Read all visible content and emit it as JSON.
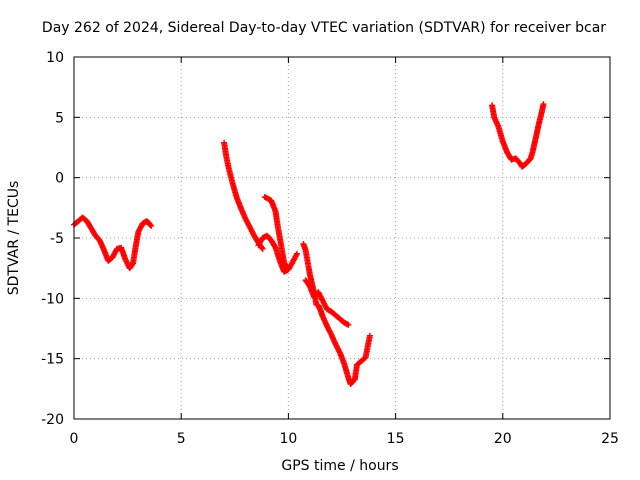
{
  "chart_data": {
    "type": "scatter",
    "title": "Day 262 of 2024, Sidereal Day-to-day VTEC variation (SDTVAR) for receiver bcar",
    "xlabel": "GPS time / hours",
    "ylabel": "SDTVAR / TECUs",
    "xlim": [
      0,
      25
    ],
    "ylim": [
      -20,
      10
    ],
    "x_ticks": [
      0,
      5,
      10,
      15,
      20,
      25
    ],
    "y_ticks": [
      -20,
      -15,
      -10,
      -5,
      0,
      5,
      10
    ],
    "grid": true,
    "marker": "plus",
    "series": [
      {
        "name": "SDTVAR",
        "color": "#ff0000",
        "segments": [
          [
            [
              0.0,
              -3.9
            ],
            [
              0.2,
              -3.6
            ],
            [
              0.4,
              -3.3
            ],
            [
              0.6,
              -3.6
            ],
            [
              0.8,
              -4.2
            ],
            [
              1.0,
              -4.8
            ],
            [
              1.2,
              -5.2
            ],
            [
              1.4,
              -6.0
            ],
            [
              1.6,
              -6.9
            ],
            [
              1.8,
              -6.6
            ],
            [
              2.0,
              -5.9
            ],
            [
              2.2,
              -5.8
            ],
            [
              2.4,
              -6.8
            ],
            [
              2.6,
              -7.5
            ],
            [
              2.75,
              -7.1
            ],
            [
              2.9,
              -5.5
            ],
            [
              3.0,
              -4.5
            ],
            [
              3.2,
              -3.8
            ],
            [
              3.4,
              -3.6
            ],
            [
              3.6,
              -4.0
            ]
          ],
          [
            [
              7.0,
              2.9
            ],
            [
              7.1,
              1.8
            ],
            [
              7.2,
              0.9
            ],
            [
              7.4,
              -0.5
            ],
            [
              7.6,
              -1.7
            ],
            [
              7.8,
              -2.6
            ],
            [
              8.0,
              -3.4
            ],
            [
              8.2,
              -4.1
            ],
            [
              8.4,
              -4.8
            ],
            [
              8.6,
              -5.4
            ],
            [
              8.8,
              -5.9
            ]
          ],
          [
            [
              8.6,
              -5.6
            ],
            [
              8.8,
              -5.0
            ],
            [
              9.0,
              -4.8
            ],
            [
              9.2,
              -5.2
            ],
            [
              9.4,
              -5.8
            ],
            [
              9.6,
              -6.9
            ],
            [
              9.8,
              -7.8
            ],
            [
              10.0,
              -7.6
            ],
            [
              10.2,
              -7.0
            ],
            [
              10.4,
              -6.3
            ]
          ],
          [
            [
              8.9,
              -1.6
            ],
            [
              9.2,
              -1.9
            ],
            [
              9.4,
              -2.8
            ],
            [
              9.5,
              -4.0
            ],
            [
              9.6,
              -5.0
            ],
            [
              9.7,
              -6.0
            ],
            [
              9.8,
              -7.0
            ],
            [
              9.9,
              -7.5
            ]
          ],
          [
            [
              10.7,
              -5.5
            ],
            [
              10.8,
              -6.0
            ],
            [
              10.9,
              -7.0
            ],
            [
              11.0,
              -8.0
            ],
            [
              11.1,
              -8.8
            ],
            [
              11.2,
              -9.5
            ],
            [
              11.3,
              -10.5
            ],
            [
              11.4,
              -10.6
            ],
            [
              11.5,
              -11.0
            ],
            [
              11.6,
              -11.5
            ],
            [
              11.8,
              -12.3
            ],
            [
              12.0,
              -13.0
            ],
            [
              12.2,
              -13.8
            ],
            [
              12.4,
              -14.5
            ],
            [
              12.6,
              -15.4
            ],
            [
              12.8,
              -16.6
            ],
            [
              12.9,
              -17.1
            ],
            [
              13.1,
              -16.7
            ],
            [
              13.2,
              -15.5
            ],
            [
              13.4,
              -15.2
            ],
            [
              13.6,
              -14.9
            ],
            [
              13.7,
              -14.0
            ],
            [
              13.8,
              -13.1
            ]
          ],
          [
            [
              10.8,
              -8.5
            ],
            [
              11.0,
              -9.0
            ],
            [
              11.2,
              -9.9
            ],
            [
              11.4,
              -9.5
            ],
            [
              11.6,
              -10.2
            ],
            [
              11.8,
              -10.9
            ],
            [
              12.0,
              -11.1
            ],
            [
              12.2,
              -11.4
            ],
            [
              12.4,
              -11.7
            ],
            [
              12.6,
              -12.0
            ],
            [
              12.8,
              -12.2
            ]
          ],
          [
            [
              19.5,
              6.0
            ],
            [
              19.6,
              5.0
            ],
            [
              19.8,
              4.2
            ],
            [
              20.0,
              3.0
            ],
            [
              20.2,
              2.1
            ],
            [
              20.4,
              1.5
            ],
            [
              20.6,
              1.6
            ],
            [
              20.8,
              1.2
            ],
            [
              20.9,
              0.9
            ],
            [
              21.1,
              1.2
            ],
            [
              21.3,
              1.6
            ],
            [
              21.4,
              2.2
            ],
            [
              21.5,
              3.0
            ],
            [
              21.6,
              3.8
            ],
            [
              21.7,
              4.6
            ],
            [
              21.8,
              5.3
            ],
            [
              21.9,
              6.1
            ]
          ]
        ]
      }
    ]
  }
}
